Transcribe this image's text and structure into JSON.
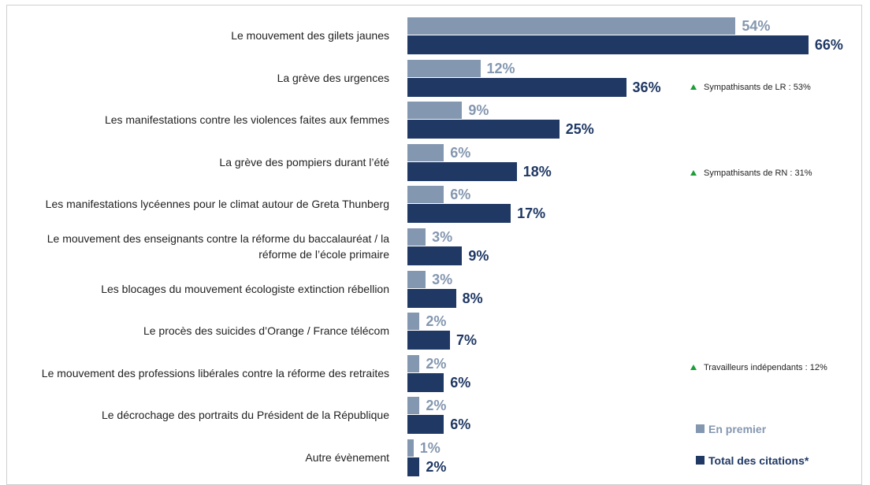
{
  "chart_data": {
    "type": "bar",
    "orientation": "horizontal",
    "categories": [
      "Le mouvement des gilets jaunes",
      "La grève des urgences",
      "Les manifestations contre les violences faites aux femmes",
      "La grève des pompiers durant l’été",
      "Les manifestations lycéennes pour le climat autour de Greta Thunberg",
      "Le mouvement des enseignants contre la réforme du baccalauréat / la réforme de l’école primaire",
      "Les blocages du mouvement écologiste extinction rébellion",
      "Le procès des suicides d’Orange / France télécom",
      "Le mouvement des professions libérales contre la réforme des retraites",
      "Le décrochage des portraits du Président de la République",
      "Autre évènement"
    ],
    "series": [
      {
        "name": "En premier",
        "color": "#8497b0",
        "values": [
          54,
          12,
          9,
          6,
          6,
          3,
          3,
          2,
          2,
          2,
          1
        ],
        "value_labels": [
          "54%",
          "12%",
          "9%",
          "6%",
          "6%",
          "3%",
          "3%",
          "2%",
          "2%",
          "2%",
          "1%"
        ]
      },
      {
        "name": "Total des citations*",
        "color": "#1f3864",
        "values": [
          66,
          36,
          25,
          18,
          17,
          9,
          8,
          7,
          6,
          6,
          2
        ],
        "value_labels": [
          "66%",
          "36%",
          "25%",
          "18%",
          "17%",
          "9%",
          "8%",
          "7%",
          "6%",
          "6%",
          "2%"
        ]
      }
    ],
    "annotations": [
      {
        "text": "Sympathisants de LR : 53%"
      },
      {
        "text": "Sympathisants de RN : 31%"
      },
      {
        "text": "Travailleurs indépendants : 12%"
      }
    ]
  }
}
